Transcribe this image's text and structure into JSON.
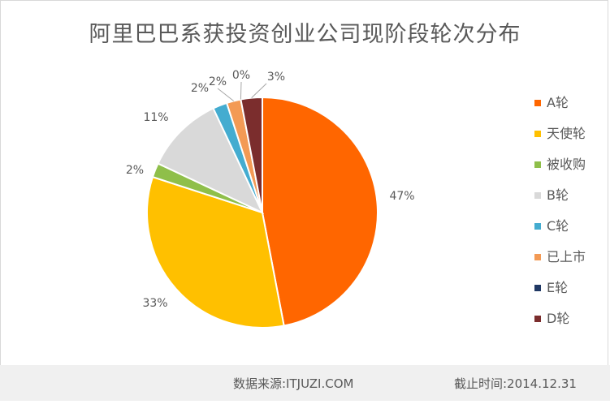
{
  "chart_data": {
    "type": "pie",
    "title": "阿里巴巴系获投资创业公司现阶段轮次分布",
    "categories": [
      "A轮",
      "天使轮",
      "被收购",
      "B轮",
      "C轮",
      "已上市",
      "E轮",
      "D轮"
    ],
    "values": [
      47,
      33,
      2,
      11,
      2,
      2,
      0,
      3
    ],
    "data_labels": [
      "47%",
      "33%",
      "2%",
      "11%",
      "2%",
      "2%",
      "0%",
      "3%"
    ],
    "colors": [
      "#ff6600",
      "#ffc000",
      "#8fbf4a",
      "#d9d9d9",
      "#44acd0",
      "#f39a55",
      "#203864",
      "#7b2d2d"
    ],
    "legend_position": "right",
    "start_angle_deg": 0,
    "direction": "clockwise"
  },
  "footer": {
    "source": "数据来源:ITJUZI.COM",
    "cutoff": "截止时间:2014.12.31"
  }
}
